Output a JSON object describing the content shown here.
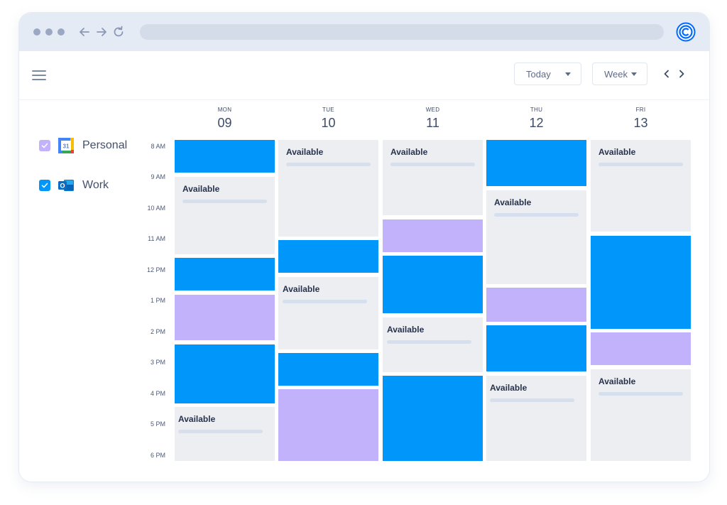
{
  "toolbar": {
    "today_label": "Today",
    "week_label": "Week"
  },
  "calendars": [
    {
      "label": "Personal",
      "checked": true,
      "checkbox_color": "#c1b2fb",
      "icon": "google-calendar-icon",
      "icon_text": "31"
    },
    {
      "label": "Work",
      "checked": true,
      "checkbox_color": "#0096fa",
      "icon": "outlook-icon",
      "icon_text": "O"
    }
  ],
  "times": [
    "8 AM",
    "9 AM",
    "10 AM",
    "11 AM",
    "12 PM",
    "1 PM",
    "2 PM",
    "3 PM",
    "4 PM",
    "5 PM",
    "6 PM"
  ],
  "days": [
    {
      "dow": "MON",
      "num": "09"
    },
    {
      "dow": "TUE",
      "num": "10"
    },
    {
      "dow": "WED",
      "num": "11"
    },
    {
      "dow": "THU",
      "num": "12"
    },
    {
      "dow": "FRI",
      "num": "13"
    }
  ],
  "event_label": "Available",
  "colors": {
    "work_blue": "#0096fa",
    "personal_purple": "#c1b2fb",
    "available_gray": "#eceef2",
    "chrome": "#e5ebf5"
  }
}
